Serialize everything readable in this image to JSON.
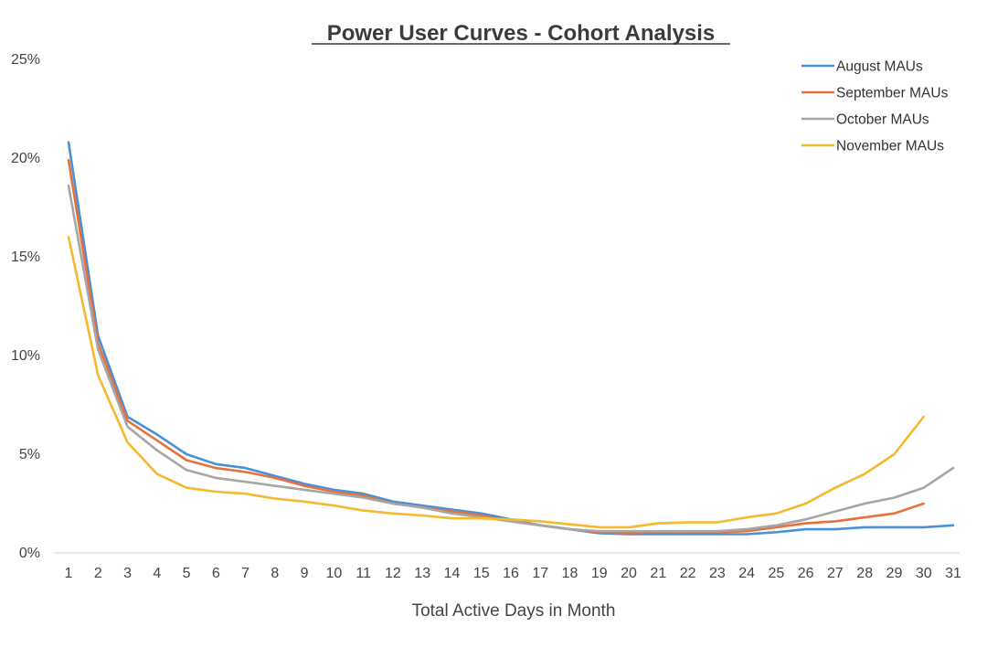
{
  "chart_data": {
    "type": "line",
    "title": "Power User Curves - Cohort Analysis",
    "xlabel": "Total Active Days in Month",
    "ylabel": "",
    "ylim": [
      0,
      25
    ],
    "yticks": [
      "0%",
      "5%",
      "10%",
      "15%",
      "20%",
      "25%"
    ],
    "ytick_values": [
      0,
      5,
      10,
      15,
      20,
      25
    ],
    "x": [
      1,
      2,
      3,
      4,
      5,
      6,
      7,
      8,
      9,
      10,
      11,
      12,
      13,
      14,
      15,
      16,
      17,
      18,
      19,
      20,
      21,
      22,
      23,
      24,
      25,
      26,
      27,
      28,
      29,
      30,
      31
    ],
    "grid": false,
    "legend_position": "top-right",
    "series": [
      {
        "name": "August MAUs",
        "color": "#4a90d9",
        "values": [
          20.8,
          11.0,
          6.9,
          6.0,
          5.0,
          4.5,
          4.3,
          3.9,
          3.5,
          3.2,
          3.0,
          2.6,
          2.4,
          2.2,
          2.0,
          1.7,
          1.4,
          1.2,
          1.0,
          0.95,
          0.95,
          0.95,
          0.95,
          0.95,
          1.05,
          1.2,
          1.2,
          1.3,
          1.3,
          1.3,
          1.4
        ]
      },
      {
        "name": "September MAUs",
        "color": "#e8703a",
        "values": [
          19.9,
          10.6,
          6.7,
          5.7,
          4.7,
          4.3,
          4.1,
          3.8,
          3.4,
          3.1,
          2.9,
          2.5,
          2.3,
          2.1,
          1.9,
          1.6,
          1.4,
          1.2,
          1.05,
          1.0,
          1.05,
          1.05,
          1.05,
          1.1,
          1.3,
          1.5,
          1.6,
          1.8,
          2.0,
          2.5,
          null
        ]
      },
      {
        "name": "October MAUs",
        "color": "#a6a6a6",
        "values": [
          18.6,
          10.3,
          6.4,
          5.2,
          4.2,
          3.8,
          3.6,
          3.4,
          3.2,
          3.0,
          2.8,
          2.5,
          2.3,
          2.0,
          1.8,
          1.6,
          1.4,
          1.2,
          1.1,
          1.1,
          1.1,
          1.1,
          1.1,
          1.2,
          1.4,
          1.7,
          2.1,
          2.5,
          2.8,
          3.3,
          4.3
        ]
      },
      {
        "name": "November MAUs",
        "color": "#f5b82e",
        "values": [
          16.0,
          9.0,
          5.6,
          4.0,
          3.3,
          3.1,
          3.0,
          2.75,
          2.6,
          2.4,
          2.15,
          2.0,
          1.9,
          1.75,
          1.75,
          1.7,
          1.6,
          1.45,
          1.3,
          1.3,
          1.5,
          1.55,
          1.55,
          1.8,
          2.0,
          2.5,
          3.3,
          4.0,
          5.0,
          6.9,
          null
        ]
      }
    ]
  }
}
